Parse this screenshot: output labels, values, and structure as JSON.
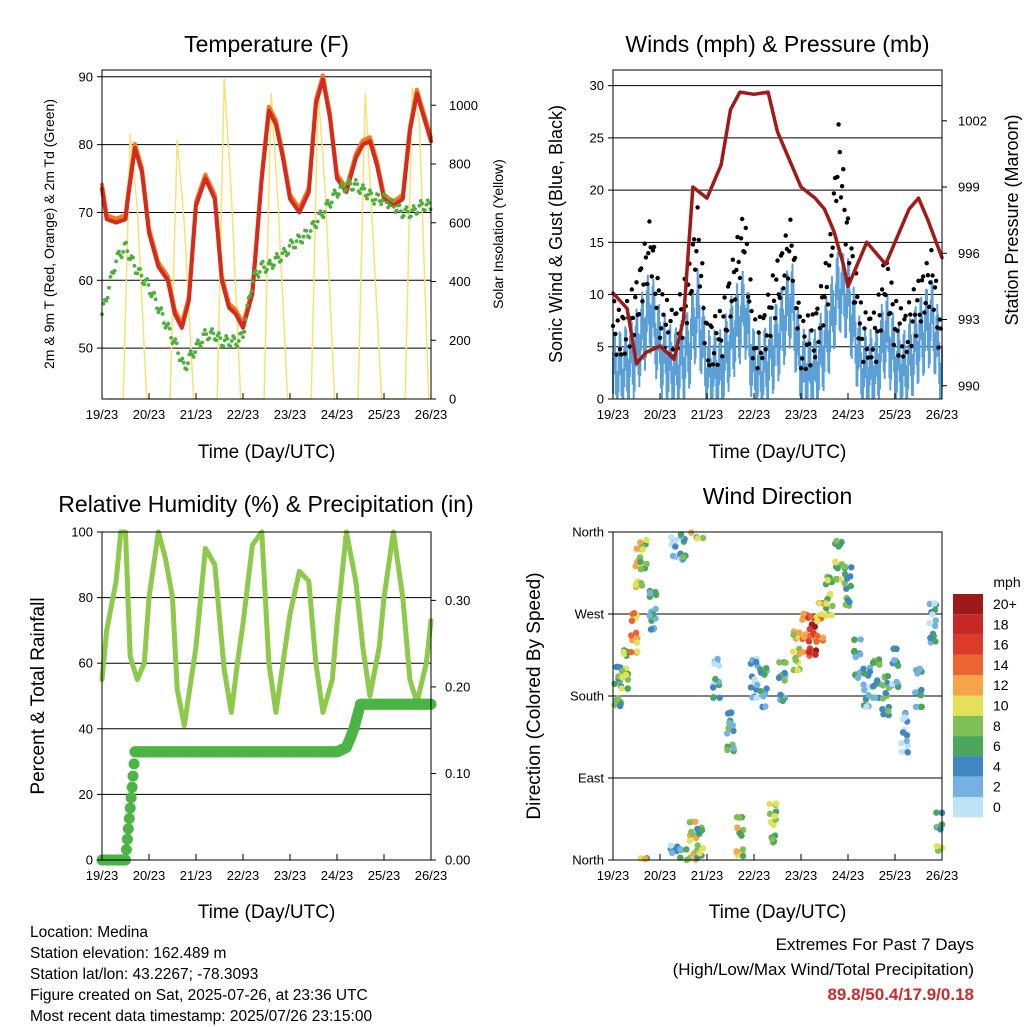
{
  "panels": {
    "temperature": {
      "title": "Temperature (F)",
      "ylabel_left": "2m & 9m T (Red, Orange) & 2m Td (Green)",
      "ylabel_right": "Solar Insolation (Yellow)",
      "xlabel": "Time (Day/UTC)",
      "left_ticks": [
        "50",
        "60",
        "70",
        "80",
        "90"
      ],
      "right_ticks": [
        "0",
        "200",
        "400",
        "600",
        "800",
        "1000"
      ]
    },
    "winds": {
      "title": "Winds (mph) & Pressure (mb)",
      "ylabel_left": "Sonic Wind & Gust (Blue, Black)",
      "ylabel_right": "Station Pressure (Maroon)",
      "xlabel": "Time (Day/UTC)",
      "left_ticks": [
        "0",
        "5",
        "10",
        "15",
        "20",
        "25",
        "30"
      ],
      "right_ticks": [
        "990",
        "993",
        "996",
        "999",
        "1002"
      ]
    },
    "humidity": {
      "title": "Relative Humidity (%) & Precipitation (in)",
      "ylabel_left": "Percent & Total Rainfall",
      "xlabel": "Time (Day/UTC)",
      "left_ticks": [
        "0",
        "20",
        "40",
        "60",
        "80",
        "100"
      ],
      "right_ticks": [
        "0.00",
        "0.10",
        "0.20",
        "0.30"
      ]
    },
    "direction": {
      "title": "Wind Direction",
      "ylabel_left": "Direction (Colored By Speed)",
      "xlabel": "Time (Day/UTC)",
      "dir_ticks": [
        "North",
        "East",
        "South",
        "West",
        "North"
      ],
      "legend_title": "mph",
      "legend_labels": [
        "20+",
        "18",
        "16",
        "14",
        "12",
        "10",
        "8",
        "6",
        "4",
        "2",
        "0"
      ],
      "legend_colors": [
        "#9e1a1a",
        "#c62828",
        "#dc3b2c",
        "#ec6531",
        "#f6a34a",
        "#e4e158",
        "#7fbf56",
        "#4aa65a",
        "#3f86c2",
        "#74b2e1",
        "#bfe3f6"
      ]
    }
  },
  "x_ticks": [
    "19/23",
    "20/23",
    "21/23",
    "22/23",
    "23/23",
    "24/23",
    "25/23",
    "26/23"
  ],
  "info": {
    "location": "Location: Medina",
    "elevation": "Station elevation: 162.489 m",
    "latlon": "Station lat/lon: 43.2267; -78.3093",
    "created": "Figure created on Sat, 2025-07-26, at 23:36 UTC",
    "recent": "Most recent data timestamp: 2025/07/26 23:15:00"
  },
  "extremes": {
    "title": "Extremes For Past 7 Days",
    "subtitle": "(High/Low/Max Wind/Total Precipitation)",
    "values": "89.8/50.4/17.9/0.18"
  },
  "colors": {
    "temp2m": "#d42b1e",
    "temp9m": "#f07a1f",
    "dewpoint": "#4daf3a",
    "solar": "#f7e274",
    "wind": "#5a9fd6",
    "gust": "#000000",
    "pressure": "#a01a18",
    "rh": "#8dc94a",
    "precip": "#4ab544"
  },
  "chart_data": [
    {
      "type": "line",
      "title": "Temperature (F)",
      "xlabel": "Time (Day/UTC)",
      "ylabel": "2m & 9m T (Red, Orange) & 2m Td (Green)",
      "ylabel_right": "Solar Insolation (Yellow)",
      "ylim": [
        42.5,
        91
      ],
      "ylim_right": [
        0,
        1120
      ],
      "x_unit": "days since 19/23",
      "series": [
        {
          "name": "2m T",
          "x": [
            0,
            0.1,
            0.3,
            0.5,
            0.55,
            0.7,
            0.85,
            1.0,
            1.2,
            1.4,
            1.55,
            1.7,
            1.85,
            2.0,
            2.2,
            2.4,
            2.55,
            2.7,
            2.85,
            3.0,
            3.2,
            3.4,
            3.55,
            3.7,
            3.85,
            4.0,
            4.2,
            4.4,
            4.55,
            4.7,
            4.85,
            5.0,
            5.2,
            5.4,
            5.55,
            5.7,
            5.85,
            6.0,
            6.2,
            6.4,
            6.55,
            6.7,
            6.85,
            7.0
          ],
          "y": [
            73.5,
            69,
            68.5,
            69,
            72,
            79.5,
            76,
            67,
            62,
            60,
            55,
            53,
            57,
            71,
            75,
            72,
            60,
            56,
            55,
            53,
            58,
            75,
            85,
            83,
            78,
            72,
            70,
            73,
            86,
            89.6,
            84,
            75,
            73,
            78,
            80,
            80.5,
            77,
            72,
            71,
            72,
            82,
            87.5,
            84,
            80.5
          ]
        },
        {
          "name": "Dewpoint",
          "x": [
            0,
            0.15,
            0.3,
            0.5,
            0.7,
            0.9,
            1.0,
            1.2,
            1.4,
            1.6,
            1.75,
            1.9,
            2.0,
            2.2,
            2.4,
            2.55,
            2.7,
            2.9,
            3.0,
            3.2,
            3.4,
            3.55,
            3.7,
            3.9,
            4.0,
            4.2,
            4.4,
            4.6,
            4.8,
            5.0,
            5.2,
            5.4,
            5.6,
            5.8,
            6.0,
            6.2,
            6.4,
            6.6,
            6.8,
            7.0
          ],
          "y": [
            55,
            59,
            63,
            65,
            62,
            60,
            59,
            56,
            53,
            50,
            47,
            49,
            50,
            52,
            52,
            51,
            51,
            51,
            52,
            60,
            62,
            62,
            63,
            64,
            65,
            66,
            67,
            69,
            71,
            73,
            74,
            74,
            73,
            72,
            72,
            71,
            70,
            70,
            71,
            71
          ]
        },
        {
          "name": "Solar Insolation",
          "x": [
            0.15,
            0.45,
            0.6,
            0.75,
            0.95,
            1.15,
            1.45,
            1.6,
            1.75,
            1.95,
            2.15,
            2.45,
            2.6,
            2.75,
            2.95,
            3.15,
            3.45,
            3.6,
            3.75,
            3.95,
            4.15,
            4.45,
            4.6,
            4.75,
            4.95,
            5.15,
            5.45,
            5.6,
            5.75,
            5.95,
            6.15,
            6.45,
            6.6,
            6.75,
            6.95
          ],
          "y": [
            0,
            0,
            900,
            650,
            0,
            0,
            0,
            880,
            600,
            0,
            0,
            0,
            1090,
            700,
            0,
            0,
            0,
            1040,
            650,
            0,
            0,
            0,
            1050,
            700,
            0,
            0,
            0,
            1040,
            600,
            0,
            0,
            0,
            1060,
            950,
            0
          ]
        }
      ]
    },
    {
      "type": "line",
      "title": "Winds (mph) & Pressure (mb)",
      "xlabel": "Time (Day/UTC)",
      "ylabel": "Sonic Wind & Gust (Blue, Black)",
      "ylabel_right": "Station Pressure (Maroon)",
      "ylim": [
        0,
        31.5
      ],
      "ylim_right": [
        989.4,
        1004.3
      ],
      "x_unit": "days since 19/23",
      "series": [
        {
          "name": "Wind",
          "x": [
            0,
            0.2,
            0.5,
            0.8,
            1.0,
            1.3,
            1.6,
            1.8,
            2.0,
            2.3,
            2.5,
            2.8,
            3.0,
            3.2,
            3.5,
            3.8,
            4.0,
            4.3,
            4.6,
            4.8,
            5.0,
            5.3,
            5.6,
            5.8,
            6.0,
            6.2,
            6.5,
            6.8,
            7.0
          ],
          "y": [
            3,
            3,
            5,
            9,
            5,
            3,
            5,
            9,
            3,
            3,
            6,
            9,
            3,
            3,
            6,
            10,
            3,
            3,
            7,
            11,
            10,
            3,
            3,
            7,
            4,
            3,
            6,
            8,
            3
          ]
        },
        {
          "name": "Gust",
          "x": [
            0,
            0.2,
            0.5,
            0.8,
            1.0,
            1.3,
            1.6,
            1.8,
            2.0,
            2.3,
            2.5,
            2.8,
            3.0,
            3.2,
            3.5,
            3.8,
            4.0,
            4.3,
            4.6,
            4.8,
            5.0,
            5.3,
            5.6,
            5.8,
            6.0,
            6.2,
            6.5,
            6.8,
            7.0
          ],
          "y": [
            7,
            6,
            9,
            15,
            8,
            6,
            10,
            16,
            5,
            6,
            10,
            16,
            5,
            6,
            11,
            15,
            5,
            6,
            12,
            24,
            15,
            6,
            6,
            12,
            7,
            6,
            9,
            12,
            4
          ]
        },
        {
          "name": "Station Pressure",
          "x": [
            0,
            0.3,
            0.5,
            0.7,
            1.0,
            1.3,
            1.5,
            1.7,
            2.0,
            2.3,
            2.5,
            2.7,
            3.0,
            3.3,
            3.5,
            3.7,
            4.0,
            4.3,
            4.5,
            4.7,
            4.9,
            5.0,
            5.2,
            5.4,
            5.6,
            5.8,
            6.0,
            6.3,
            6.5,
            6.7,
            7.0
          ],
          "y": [
            994.2,
            993.5,
            991,
            991.5,
            991.8,
            991.2,
            993,
            999,
            998.5,
            1000,
            1002.5,
            1003.3,
            1003.2,
            1003.3,
            1001.5,
            1000.5,
            999,
            998.5,
            998,
            997,
            995.5,
            994.5,
            995.5,
            996.5,
            996,
            995.5,
            996.5,
            998,
            998.5,
            997.5,
            995.8
          ]
        }
      ]
    },
    {
      "type": "line",
      "title": "Relative Humidity (%) & Precipitation (in)",
      "xlabel": "Time (Day/UTC)",
      "ylabel": "Percent & Total Rainfall",
      "ylim": [
        0,
        100
      ],
      "ylim_right": [
        0,
        0.379
      ],
      "x_unit": "days since 19/23",
      "series": [
        {
          "name": "RH",
          "x": [
            0,
            0.1,
            0.3,
            0.4,
            0.5,
            0.6,
            0.75,
            0.9,
            1.0,
            1.2,
            1.35,
            1.5,
            1.6,
            1.75,
            2.0,
            2.2,
            2.4,
            2.6,
            2.75,
            2.9,
            3.0,
            3.2,
            3.4,
            3.55,
            3.7,
            3.9,
            4.0,
            4.2,
            4.4,
            4.55,
            4.7,
            4.9,
            5.0,
            5.2,
            5.4,
            5.55,
            5.7,
            5.9,
            6.0,
            6.2,
            6.4,
            6.55,
            6.7,
            6.9,
            7.0
          ],
          "y": [
            55,
            70,
            85,
            100,
            100,
            62,
            55,
            60,
            80,
            100,
            92,
            80,
            52,
            41,
            65,
            95,
            90,
            58,
            45,
            62,
            72,
            96,
            100,
            60,
            45,
            65,
            75,
            88,
            85,
            60,
            45,
            55,
            72,
            100,
            85,
            65,
            50,
            65,
            80,
            100,
            80,
            55,
            48,
            60,
            73
          ]
        },
        {
          "name": "Total Precipitation",
          "x": [
            0,
            0.5,
            0.55,
            0.6,
            0.65,
            0.7,
            1.0,
            2.0,
            3.0,
            4.0,
            5.0,
            5.2,
            5.35,
            5.5,
            6.0,
            7.0
          ],
          "y": [
            0,
            0,
            0.03,
            0.06,
            0.09,
            0.125,
            0.125,
            0.125,
            0.125,
            0.125,
            0.125,
            0.13,
            0.15,
            0.18,
            0.18,
            0.18
          ]
        }
      ]
    },
    {
      "type": "scatter",
      "title": "Wind Direction",
      "xlabel": "Time (Day/UTC)",
      "ylabel": "Direction (Colored By Speed)",
      "y_categories": [
        "North",
        "East",
        "South",
        "West",
        "North"
      ],
      "colorbar": {
        "title": "mph",
        "labels": [
          "20+",
          "18",
          "16",
          "14",
          "12",
          "10",
          "8",
          "6",
          "4",
          "2",
          "0"
        ]
      },
      "x_unit": "days since 19/23",
      "points": [
        {
          "x": 0.1,
          "y": 190,
          "speed": 6
        },
        {
          "x": 0.25,
          "y": 210,
          "speed": 8
        },
        {
          "x": 0.45,
          "y": 250,
          "speed": 12
        },
        {
          "x": 0.55,
          "y": 320,
          "speed": 10
        },
        {
          "x": 0.65,
          "y": 340,
          "speed": 9
        },
        {
          "x": 0.85,
          "y": 275,
          "speed": 4
        },
        {
          "x": 1.3,
          "y": 355,
          "speed": 2
        },
        {
          "x": 1.5,
          "y": 350,
          "speed": 5
        },
        {
          "x": 1.7,
          "y": 20,
          "speed": 10
        },
        {
          "x": 1.85,
          "y": 15,
          "speed": 7
        },
        {
          "x": 2.2,
          "y": 200,
          "speed": 3
        },
        {
          "x": 2.5,
          "y": 140,
          "speed": 5
        },
        {
          "x": 2.7,
          "y": 25,
          "speed": 9
        },
        {
          "x": 3.0,
          "y": 200,
          "speed": 2
        },
        {
          "x": 3.2,
          "y": 190,
          "speed": 4
        },
        {
          "x": 3.4,
          "y": 40,
          "speed": 8
        },
        {
          "x": 3.6,
          "y": 195,
          "speed": 5
        },
        {
          "x": 3.9,
          "y": 230,
          "speed": 10
        },
        {
          "x": 4.1,
          "y": 250,
          "speed": 14
        },
        {
          "x": 4.25,
          "y": 245,
          "speed": 17
        },
        {
          "x": 4.4,
          "y": 260,
          "speed": 12
        },
        {
          "x": 4.6,
          "y": 290,
          "speed": 8
        },
        {
          "x": 4.8,
          "y": 330,
          "speed": 7
        },
        {
          "x": 5.0,
          "y": 300,
          "speed": 6
        },
        {
          "x": 5.2,
          "y": 220,
          "speed": 4
        },
        {
          "x": 5.4,
          "y": 190,
          "speed": 3
        },
        {
          "x": 5.6,
          "y": 200,
          "speed": 5
        },
        {
          "x": 5.8,
          "y": 180,
          "speed": 6
        },
        {
          "x": 6.0,
          "y": 210,
          "speed": 3
        },
        {
          "x": 6.2,
          "y": 140,
          "speed": 2
        },
        {
          "x": 6.5,
          "y": 190,
          "speed": 4
        },
        {
          "x": 6.8,
          "y": 260,
          "speed": 3
        },
        {
          "x": 6.95,
          "y": 30,
          "speed": 7
        }
      ]
    }
  ]
}
